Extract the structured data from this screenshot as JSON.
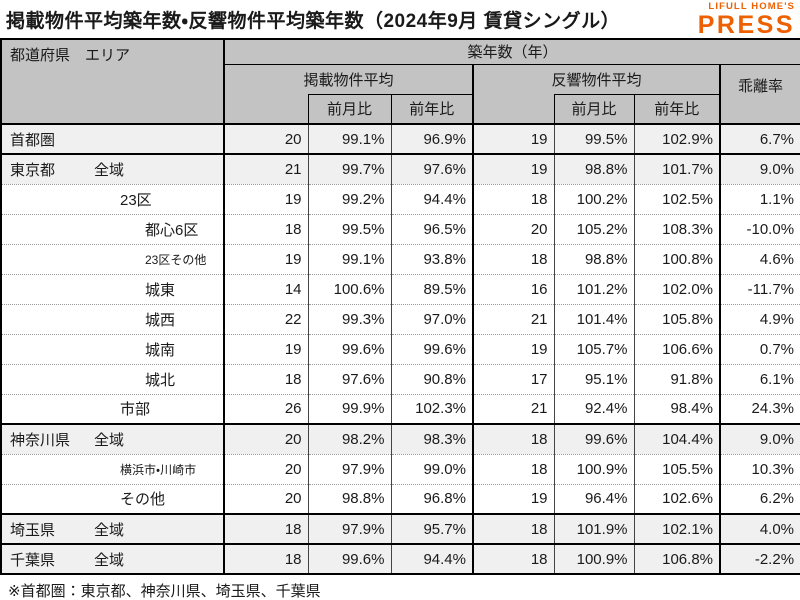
{
  "title": "掲載物件平均築年数・反響物件平均築年数（2024年9月 賃貸シングル）",
  "logo": {
    "top": "LIFULL HOME'S",
    "press": "PRESS"
  },
  "colors": {
    "brand_orange": "#ed6103",
    "header_bg": "#c3c3c3",
    "shaded_row_bg": "#f0f0f0",
    "border_black": "#000000",
    "dotted_separator": "#9a9a9a"
  },
  "table": {
    "header": {
      "area_col": "都道府県　エリア",
      "age_group": "築年数（年）",
      "listed_group": "掲載物件平均",
      "response_group": "反響物件平均",
      "divergence": "乖離率",
      "mom": "前月比",
      "yoy": "前年比"
    },
    "rows": [
      {
        "pref": "首都圏",
        "area": "",
        "lv": 0,
        "small": false,
        "shaded": true,
        "sep": "solid",
        "values": [
          "20",
          "99.1%",
          "96.9%",
          "19",
          "99.5%",
          "102.9%",
          "6.7%"
        ]
      },
      {
        "pref": "東京都",
        "area": "全域",
        "lv": 1,
        "small": false,
        "shaded": true,
        "sep": "solid",
        "values": [
          "21",
          "99.7%",
          "97.6%",
          "19",
          "98.8%",
          "101.7%",
          "9.0%"
        ]
      },
      {
        "pref": "",
        "area": "23区",
        "lv": 2,
        "small": false,
        "shaded": false,
        "sep": "dot",
        "values": [
          "19",
          "99.2%",
          "94.4%",
          "18",
          "100.2%",
          "102.5%",
          "1.1%"
        ]
      },
      {
        "pref": "",
        "area": "都心6区",
        "lv": 3,
        "small": false,
        "shaded": false,
        "sep": "dot",
        "values": [
          "18",
          "99.5%",
          "96.5%",
          "20",
          "105.2%",
          "108.3%",
          "-10.0%"
        ]
      },
      {
        "pref": "",
        "area": "23区その他",
        "lv": 3,
        "small": true,
        "shaded": false,
        "sep": "dot",
        "values": [
          "19",
          "99.1%",
          "93.8%",
          "18",
          "98.8%",
          "100.8%",
          "4.6%"
        ]
      },
      {
        "pref": "",
        "area": "城東",
        "lv": 3,
        "small": false,
        "shaded": false,
        "sep": "dot",
        "values": [
          "14",
          "100.6%",
          "89.5%",
          "16",
          "101.2%",
          "102.0%",
          "-11.7%"
        ]
      },
      {
        "pref": "",
        "area": "城西",
        "lv": 3,
        "small": false,
        "shaded": false,
        "sep": "dot",
        "values": [
          "22",
          "99.3%",
          "97.0%",
          "21",
          "101.4%",
          "105.8%",
          "4.9%"
        ]
      },
      {
        "pref": "",
        "area": "城南",
        "lv": 3,
        "small": false,
        "shaded": false,
        "sep": "dot",
        "values": [
          "19",
          "99.6%",
          "99.6%",
          "19",
          "105.7%",
          "106.6%",
          "0.7%"
        ]
      },
      {
        "pref": "",
        "area": "城北",
        "lv": 3,
        "small": false,
        "shaded": false,
        "sep": "dot",
        "values": [
          "18",
          "97.6%",
          "90.8%",
          "17",
          "95.1%",
          "91.8%",
          "6.1%"
        ]
      },
      {
        "pref": "",
        "area": "市部",
        "lv": 2,
        "small": false,
        "shaded": false,
        "sep": "dot",
        "values": [
          "26",
          "99.9%",
          "102.3%",
          "21",
          "92.4%",
          "98.4%",
          "24.3%"
        ]
      },
      {
        "pref": "神奈川県",
        "area": "全域",
        "lv": 1,
        "small": false,
        "shaded": true,
        "sep": "solid",
        "values": [
          "20",
          "98.2%",
          "98.3%",
          "18",
          "99.6%",
          "104.4%",
          "9.0%"
        ]
      },
      {
        "pref": "",
        "area": "横浜市・川崎市",
        "lv": 2,
        "small": true,
        "shaded": false,
        "sep": "dot",
        "values": [
          "20",
          "97.9%",
          "99.0%",
          "18",
          "100.9%",
          "105.5%",
          "10.3%"
        ]
      },
      {
        "pref": "",
        "area": "その他",
        "lv": 2,
        "small": false,
        "shaded": false,
        "sep": "dot",
        "values": [
          "20",
          "98.8%",
          "96.8%",
          "19",
          "96.4%",
          "102.6%",
          "6.2%"
        ]
      },
      {
        "pref": "埼玉県",
        "area": "全域",
        "lv": 1,
        "small": false,
        "shaded": true,
        "sep": "solid",
        "values": [
          "18",
          "97.9%",
          "95.7%",
          "18",
          "101.9%",
          "102.1%",
          "4.0%"
        ]
      },
      {
        "pref": "千葉県",
        "area": "全域",
        "lv": 1,
        "small": false,
        "shaded": true,
        "sep": "solid",
        "values": [
          "18",
          "99.6%",
          "94.4%",
          "18",
          "100.9%",
          "106.8%",
          "-2.2%"
        ]
      }
    ]
  },
  "footnote": "※首都圏：東京都、神奈川県、埼玉県、千葉県",
  "chart_data": {
    "type": "table",
    "title": "掲載物件平均築年数・反響物件平均築年数（2024年9月 賃貸シングル）",
    "columns": [
      "都道府県",
      "エリア",
      "掲載物件平均 築年数(年)",
      "掲載 前月比",
      "掲載 前年比",
      "反響物件平均 築年数(年)",
      "反響 前月比",
      "反響 前年比",
      "乖離率"
    ],
    "rows": [
      [
        "首都圏",
        "",
        20,
        "99.1%",
        "96.9%",
        19,
        "99.5%",
        "102.9%",
        "6.7%"
      ],
      [
        "東京都",
        "全域",
        21,
        "99.7%",
        "97.6%",
        19,
        "98.8%",
        "101.7%",
        "9.0%"
      ],
      [
        "東京都",
        "23区",
        19,
        "99.2%",
        "94.4%",
        18,
        "100.2%",
        "102.5%",
        "1.1%"
      ],
      [
        "東京都",
        "都心6区",
        18,
        "99.5%",
        "96.5%",
        20,
        "105.2%",
        "108.3%",
        "-10.0%"
      ],
      [
        "東京都",
        "23区その他",
        19,
        "99.1%",
        "93.8%",
        18,
        "98.8%",
        "100.8%",
        "4.6%"
      ],
      [
        "東京都",
        "城東",
        14,
        "100.6%",
        "89.5%",
        16,
        "101.2%",
        "102.0%",
        "-11.7%"
      ],
      [
        "東京都",
        "城西",
        22,
        "99.3%",
        "97.0%",
        21,
        "101.4%",
        "105.8%",
        "4.9%"
      ],
      [
        "東京都",
        "城南",
        19,
        "99.6%",
        "99.6%",
        19,
        "105.7%",
        "106.6%",
        "0.7%"
      ],
      [
        "東京都",
        "城北",
        18,
        "97.6%",
        "90.8%",
        17,
        "95.1%",
        "91.8%",
        "6.1%"
      ],
      [
        "東京都",
        "市部",
        26,
        "99.9%",
        "102.3%",
        21,
        "92.4%",
        "98.4%",
        "24.3%"
      ],
      [
        "神奈川県",
        "全域",
        20,
        "98.2%",
        "98.3%",
        18,
        "99.6%",
        "104.4%",
        "9.0%"
      ],
      [
        "神奈川県",
        "横浜市・川崎市",
        20,
        "97.9%",
        "99.0%",
        18,
        "100.9%",
        "105.5%",
        "10.3%"
      ],
      [
        "神奈川県",
        "その他",
        20,
        "98.8%",
        "96.8%",
        19,
        "96.4%",
        "102.6%",
        "6.2%"
      ],
      [
        "埼玉県",
        "全域",
        18,
        "97.9%",
        "95.7%",
        18,
        "101.9%",
        "102.1%",
        "4.0%"
      ],
      [
        "千葉県",
        "全域",
        18,
        "99.6%",
        "94.4%",
        18,
        "100.9%",
        "106.8%",
        "-2.2%"
      ]
    ]
  }
}
